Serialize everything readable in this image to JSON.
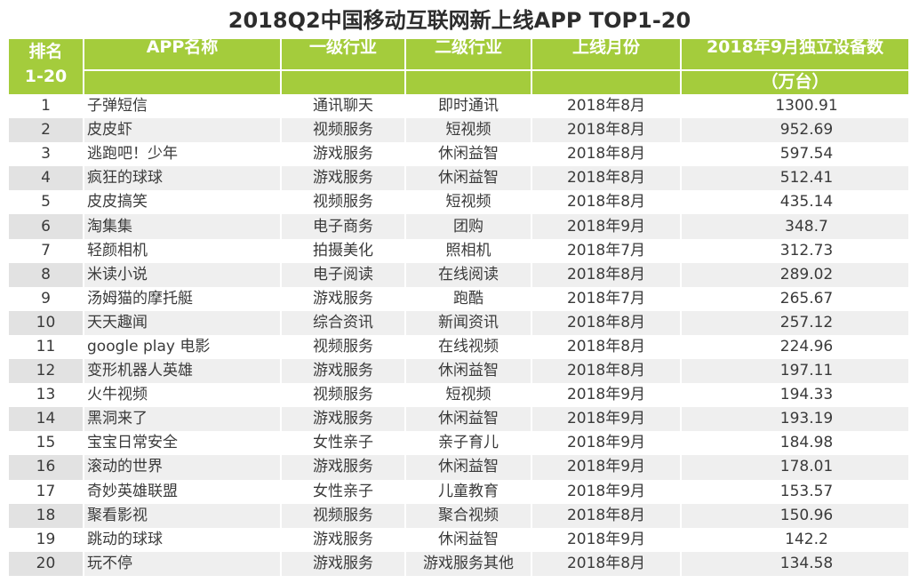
{
  "title": "2018Q2中国移动互联网新上线APP TOP1-20",
  "colors": {
    "header_bg": "#a4cc3c",
    "header_text": "#ffffff",
    "stripe": "#efefef"
  },
  "chart_data": {
    "type": "table",
    "title": "2018Q2中国移动互联网新上线APP TOP1-20",
    "columns": [
      {
        "line1": "排名",
        "line2": "1-20"
      },
      {
        "line1": "APP名称",
        "line2": ""
      },
      {
        "line1": "一级行业",
        "line2": ""
      },
      {
        "line1": "二级行业",
        "line2": ""
      },
      {
        "line1": "上线月份",
        "line2": ""
      },
      {
        "line1": "2018年9月独立设备数",
        "line2": "（万台）"
      }
    ],
    "rows": [
      [
        "1",
        "子弹短信",
        "通讯聊天",
        "即时通讯",
        "2018年8月",
        "1300.91"
      ],
      [
        "2",
        "皮皮虾",
        "视频服务",
        "短视频",
        "2018年8月",
        "952.69"
      ],
      [
        "3",
        "逃跑吧！少年",
        "游戏服务",
        "休闲益智",
        "2018年8月",
        "597.54"
      ],
      [
        "4",
        "疯狂的球球",
        "游戏服务",
        "休闲益智",
        "2018年8月",
        "512.41"
      ],
      [
        "5",
        "皮皮搞笑",
        "视频服务",
        "短视频",
        "2018年8月",
        "435.14"
      ],
      [
        "6",
        "淘集集",
        "电子商务",
        "团购",
        "2018年9月",
        "348.7"
      ],
      [
        "7",
        "轻颜相机",
        "拍摄美化",
        "照相机",
        "2018年7月",
        "312.73"
      ],
      [
        "8",
        "米读小说",
        "电子阅读",
        "在线阅读",
        "2018年8月",
        "289.02"
      ],
      [
        "9",
        "汤姆猫的摩托艇",
        "游戏服务",
        "跑酷",
        "2018年7月",
        "265.67"
      ],
      [
        "10",
        "天天趣闻",
        "综合资讯",
        "新闻资讯",
        "2018年8月",
        "257.12"
      ],
      [
        "11",
        "google play 电影",
        "视频服务",
        "在线视频",
        "2018年8月",
        "224.96"
      ],
      [
        "12",
        "变形机器人英雄",
        "游戏服务",
        "休闲益智",
        "2018年8月",
        "197.11"
      ],
      [
        "13",
        "火牛视频",
        "视频服务",
        "短视频",
        "2018年9月",
        "194.33"
      ],
      [
        "14",
        "黑洞来了",
        "游戏服务",
        "休闲益智",
        "2018年9月",
        "193.19"
      ],
      [
        "15",
        "宝宝日常安全",
        "女性亲子",
        "亲子育儿",
        "2018年9月",
        "184.98"
      ],
      [
        "16",
        "滚动的世界",
        "游戏服务",
        "休闲益智",
        "2018年9月",
        "178.01"
      ],
      [
        "17",
        "奇妙英雄联盟",
        "女性亲子",
        "儿童教育",
        "2018年9月",
        "153.57"
      ],
      [
        "18",
        "聚看影视",
        "视频服务",
        "聚合视频",
        "2018年8月",
        "150.96"
      ],
      [
        "19",
        "跳动的球球",
        "游戏服务",
        "休闲益智",
        "2018年9月",
        "142.2"
      ],
      [
        "20",
        "玩不停",
        "游戏服务",
        "游戏服务其他",
        "2018年8月",
        "134.58"
      ]
    ]
  }
}
